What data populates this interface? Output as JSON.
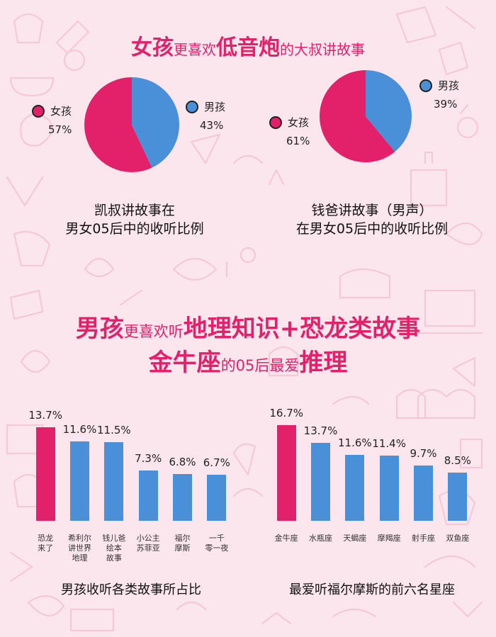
{
  "section1": {
    "heading": {
      "part1": "女孩",
      "part2": "更喜欢",
      "part3": "低音炮",
      "part4": "的",
      "part5": "大叔讲故事"
    }
  },
  "pies": [
    {
      "caption_line1": "凯叔讲故事在",
      "caption_line2": "男女05后中的收听比例",
      "girl_label": "女孩",
      "girl_pct": "57%",
      "boy_label": "男孩",
      "boy_pct": "43%",
      "girl_value": 57,
      "boy_value": 43
    },
    {
      "caption_line1": "钱爸讲故事（男声）",
      "caption_line2": "在男女05后中的收听比例",
      "girl_label": "女孩",
      "girl_pct": "61%",
      "boy_label": "男孩",
      "boy_pct": "39%",
      "girl_value": 61,
      "boy_value": 39
    }
  ],
  "section2": {
    "heading_line1": {
      "part1": "男孩",
      "part2": "更喜欢听",
      "part3": "地理知识+恐龙类故事"
    },
    "heading_line2": {
      "part1": "金牛座",
      "part2": "的05后最爱",
      "part3": "推理"
    }
  },
  "colors": {
    "girl": "#e3206a",
    "boy": "#4a90d9",
    "background": "#fce6ee",
    "doodle": "#f4c9d6"
  },
  "chart_data": [
    {
      "type": "pie",
      "title": "凯叔讲故事在男女05后中的收听比例",
      "series": [
        {
          "name": "女孩",
          "value": 57
        },
        {
          "name": "男孩",
          "value": 43
        }
      ]
    },
    {
      "type": "pie",
      "title": "钱爸讲故事（男声）在男女05后中的收听比例",
      "series": [
        {
          "name": "女孩",
          "value": 61
        },
        {
          "name": "男孩",
          "value": 39
        }
      ]
    },
    {
      "type": "bar",
      "title": "男孩收听各类故事所占比",
      "categories": [
        [
          "恐龙",
          "来了"
        ],
        [
          "希利尔",
          "讲世界",
          "地理"
        ],
        [
          "钱儿爸",
          "绘本",
          "故事"
        ],
        [
          "小公主",
          "苏菲亚"
        ],
        [
          "福尔",
          "摩斯"
        ],
        [
          "一千",
          "零一夜"
        ]
      ],
      "values": [
        13.7,
        11.6,
        11.5,
        7.3,
        6.8,
        6.7
      ],
      "labels": [
        "13.7%",
        "11.6%",
        "11.5%",
        "7.3%",
        "6.8%",
        "6.7%"
      ],
      "highlight_index": 0,
      "ylim": [
        0,
        15
      ]
    },
    {
      "type": "bar",
      "title": "最爱听福尔摩斯的前六名星座",
      "categories": [
        [
          "金牛座"
        ],
        [
          "水瓶座"
        ],
        [
          "天蝎座"
        ],
        [
          "摩羯座"
        ],
        [
          "射手座"
        ],
        [
          "双鱼座"
        ]
      ],
      "values": [
        16.7,
        13.7,
        11.6,
        11.4,
        9.7,
        8.5
      ],
      "labels": [
        "16.7%",
        "13.7%",
        "11.6%",
        "11.4%",
        "9.7%",
        "8.5%"
      ],
      "highlight_index": 0,
      "ylim": [
        0,
        18
      ]
    }
  ]
}
